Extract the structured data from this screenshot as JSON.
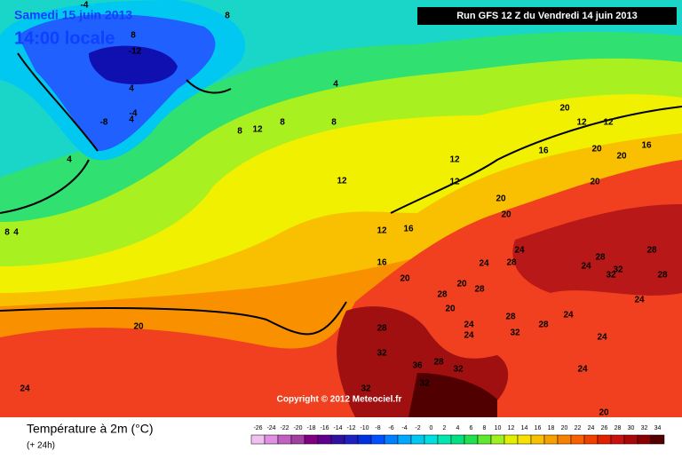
{
  "header": {
    "date": "Samedi 15 juin 2013",
    "time": "14:00 locale",
    "run": "Run GFS 12 Z du Vendredi 14 juin 2013"
  },
  "copyright": "Copyright © 2012 Meteociel.fr",
  "footer": {
    "title": "Température à 2m (°C)",
    "lead": "(+ 24h)"
  },
  "legend": {
    "ticks": [
      -26,
      -24,
      -22,
      -20,
      -18,
      -16,
      -14,
      -12,
      -10,
      -8,
      -6,
      -4,
      -2,
      0,
      2,
      4,
      6,
      8,
      10,
      12,
      14,
      16,
      18,
      20,
      22,
      24,
      26,
      28,
      30,
      32,
      34
    ],
    "colors": [
      "#f0c0f0",
      "#e090e0",
      "#c060c0",
      "#a040a0",
      "#800080",
      "#600090",
      "#3010a0",
      "#2020c0",
      "#0030e0",
      "#0050ff",
      "#0080ff",
      "#00a8ff",
      "#00c8f0",
      "#00e0e0",
      "#00e8b0",
      "#00e080",
      "#20e050",
      "#60e830",
      "#a0f020",
      "#e0f000",
      "#f8e000",
      "#f8c000",
      "#f8a000",
      "#f88000",
      "#f86000",
      "#f04000",
      "#e02000",
      "#c81010",
      "#a80808",
      "#880000",
      "#500000"
    ]
  },
  "contour_labels": [
    -4,
    8,
    -12,
    4,
    4,
    -8,
    -4,
    4,
    4,
    8,
    8,
    12,
    8,
    12,
    12,
    20,
    12,
    12,
    16,
    16,
    20,
    20,
    12,
    20,
    20,
    20,
    12,
    16,
    16,
    24,
    28,
    24,
    28,
    20,
    20,
    28,
    32,
    24,
    28,
    24,
    28,
    28,
    32,
    28,
    32,
    36,
    32,
    28,
    28,
    32,
    24,
    24,
    24,
    20,
    24,
    24,
    20,
    28,
    32,
    32,
    4,
    8,
    8,
    20,
    24
  ]
}
